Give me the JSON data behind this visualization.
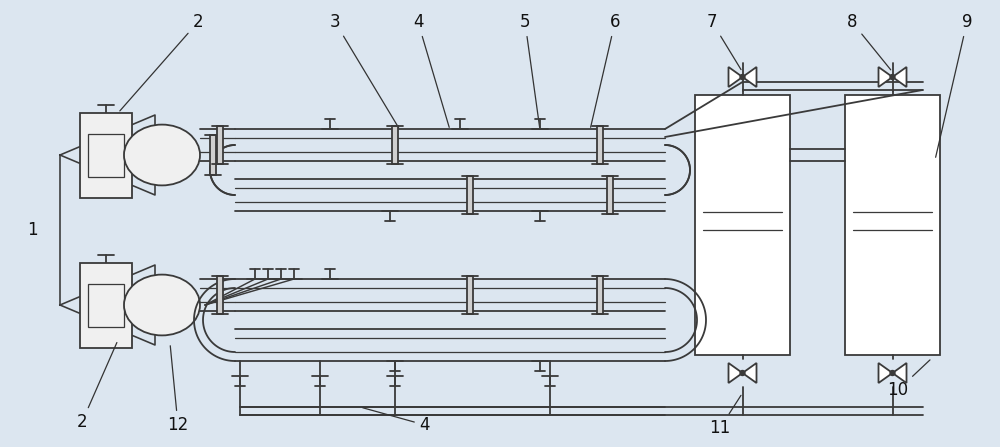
{
  "bg_color": "#dce6f0",
  "line_color": "#3a3a3a",
  "lw": 1.3,
  "white": "#ffffff",
  "gray_light": "#c8c8c8"
}
